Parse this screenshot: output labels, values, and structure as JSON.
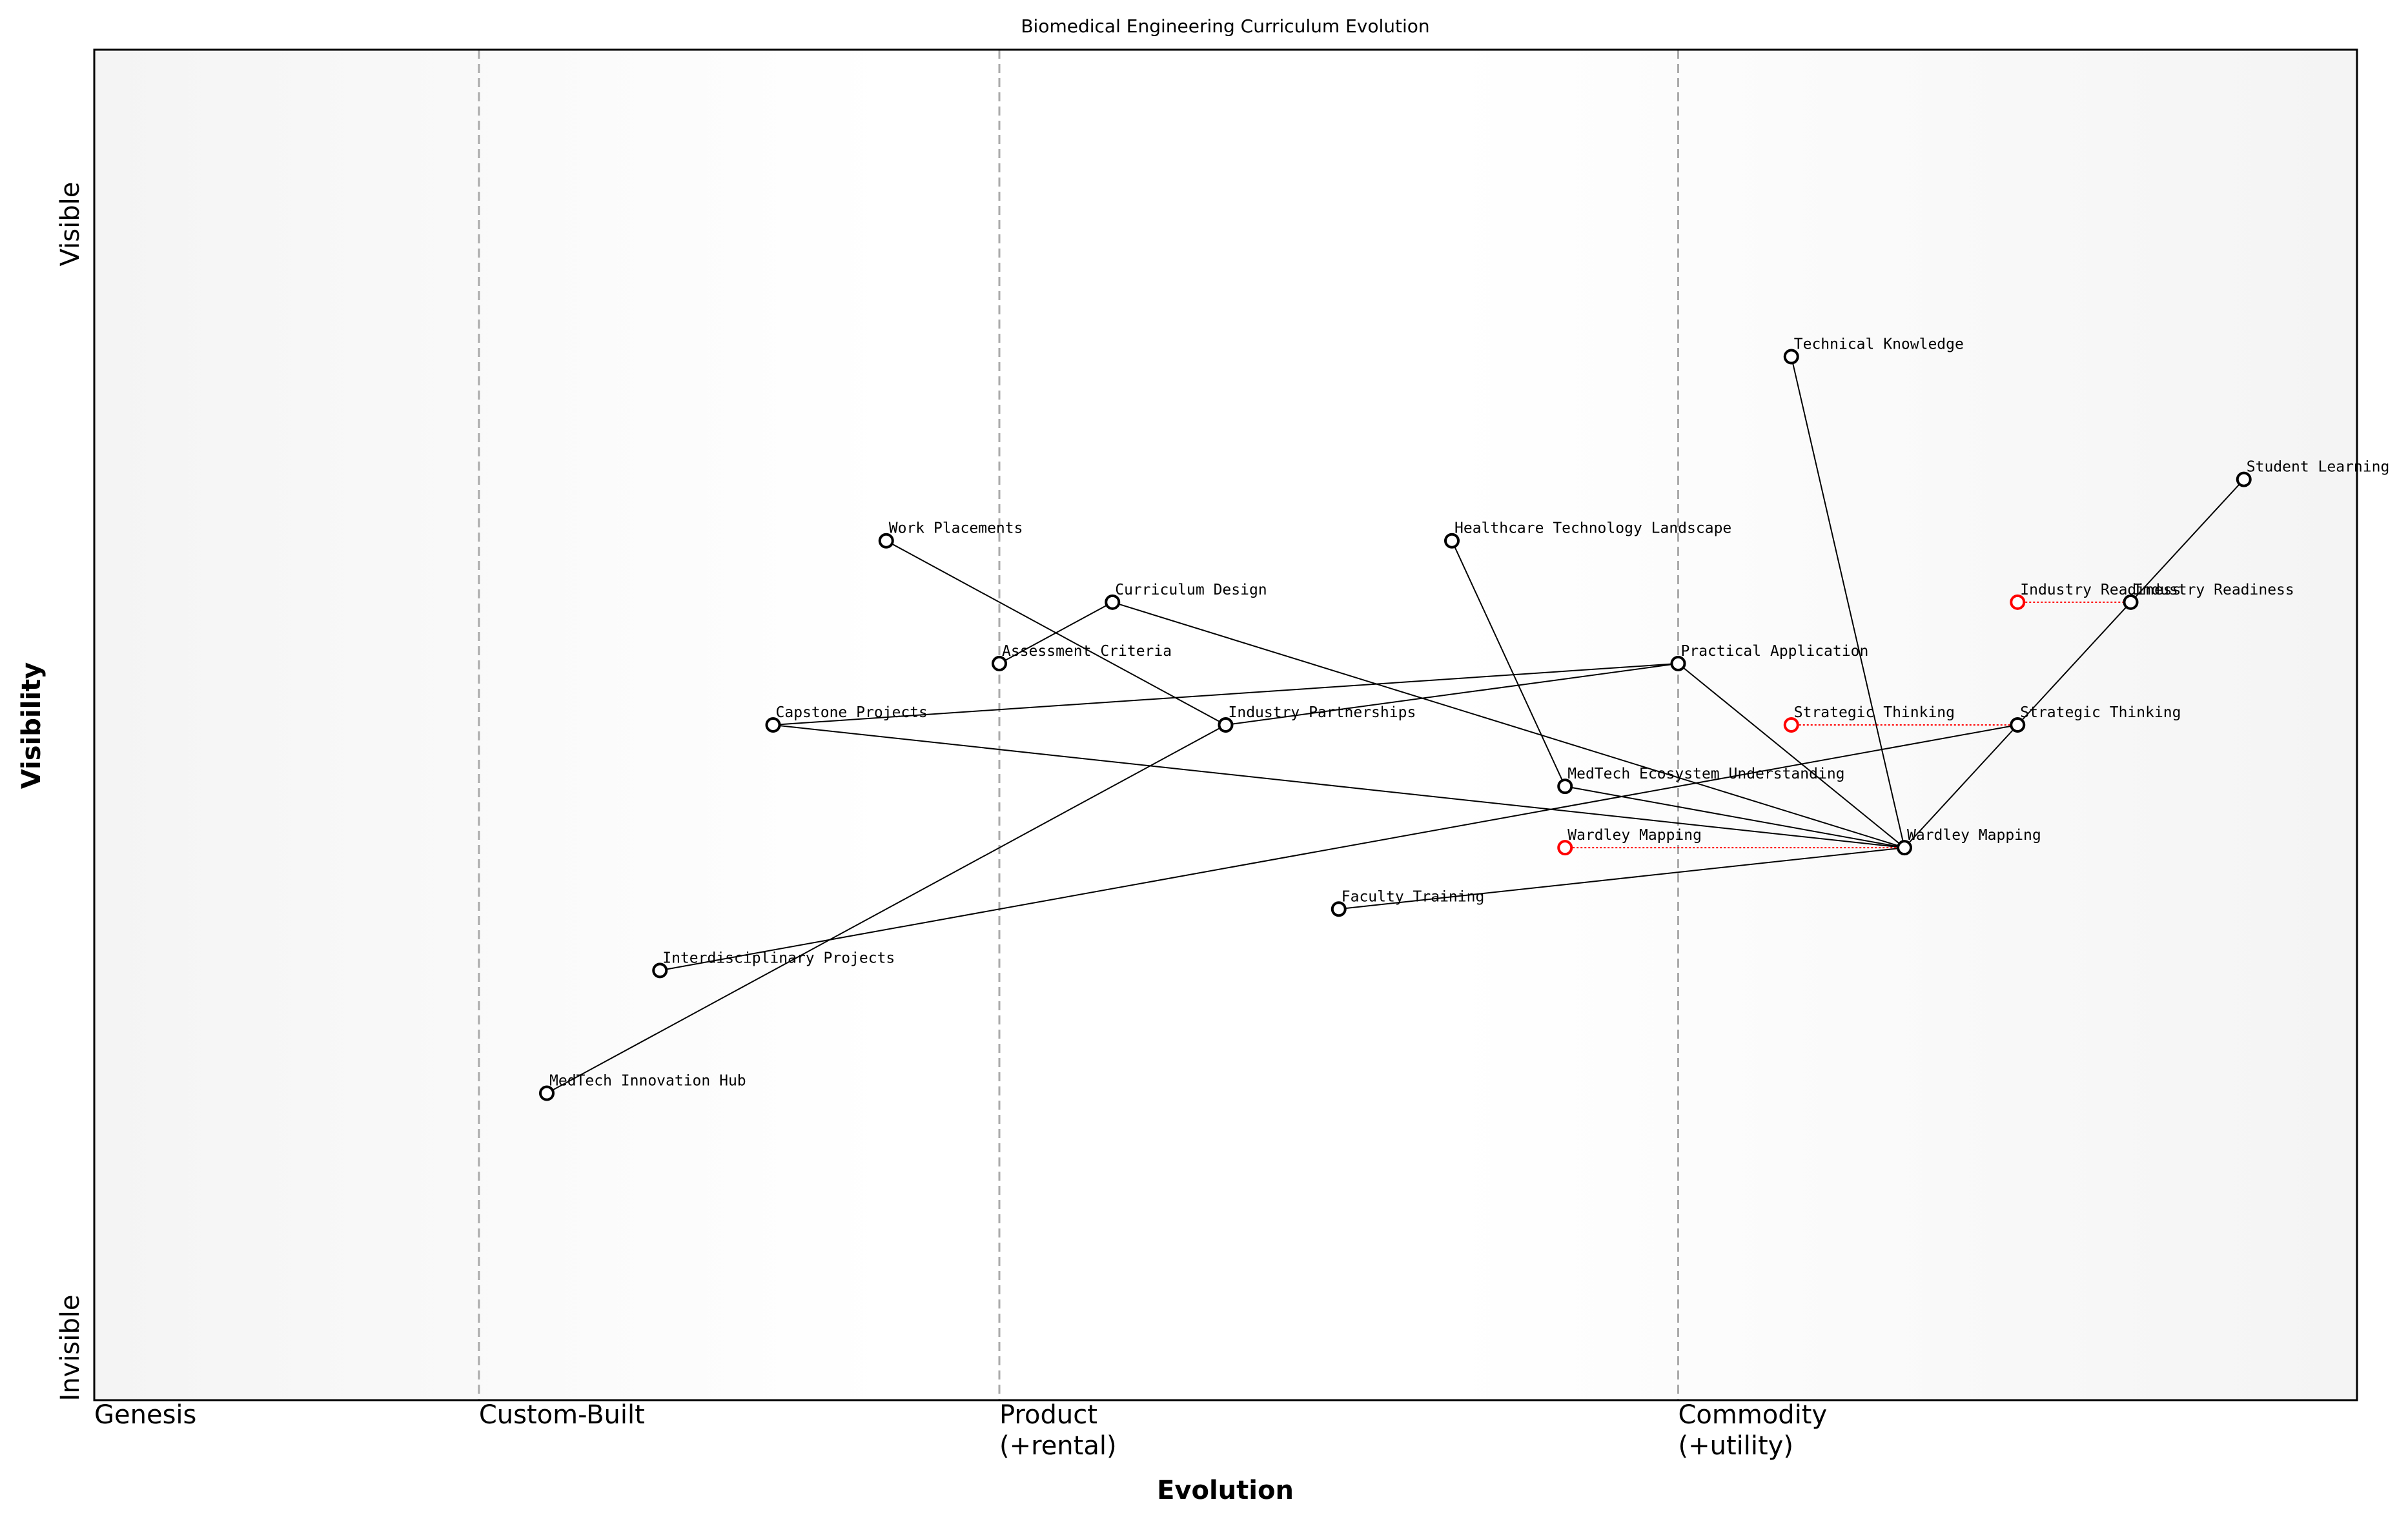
{
  "chart_data": {
    "type": "wardley",
    "title": "Biomedical Engineering Curriculum Evolution",
    "xlabel": "Evolution",
    "ylabel": "Visibility",
    "y_top_label": "Visible",
    "y_bottom_label": "Invisible",
    "xlim": [
      0,
      1
    ],
    "ylim": [
      0,
      1.1
    ],
    "xticks": [
      {
        "value": 0,
        "label": "Genesis"
      },
      {
        "value": 0.17,
        "label": "Custom-Built"
      },
      {
        "value": 0.4,
        "label": "Product\n(+rental)"
      },
      {
        "value": 0.7,
        "label": "Commodity\n(+utility)"
      }
    ],
    "node_color": "#000000",
    "evolve_color": "#ff0000",
    "nodes": [
      {
        "name": "Technical Knowledge",
        "x": 0.75,
        "y": 0.85
      },
      {
        "name": "Student Learning",
        "x": 0.95,
        "y": 0.75
      },
      {
        "name": "Work Placements",
        "x": 0.35,
        "y": 0.7
      },
      {
        "name": "Healthcare Technology Landscape",
        "x": 0.6,
        "y": 0.7
      },
      {
        "name": "Curriculum Design",
        "x": 0.45,
        "y": 0.65
      },
      {
        "name": "Industry Readiness",
        "x": 0.9,
        "y": 0.65
      },
      {
        "name": "Assessment Criteria",
        "x": 0.4,
        "y": 0.6
      },
      {
        "name": "Practical Application",
        "x": 0.7,
        "y": 0.6
      },
      {
        "name": "Capstone Projects",
        "x": 0.3,
        "y": 0.55
      },
      {
        "name": "Industry Partnerships",
        "x": 0.5,
        "y": 0.55
      },
      {
        "name": "Strategic Thinking",
        "x": 0.85,
        "y": 0.55
      },
      {
        "name": "MedTech Ecosystem Understanding",
        "x": 0.65,
        "y": 0.5
      },
      {
        "name": "Wardley Mapping",
        "x": 0.8,
        "y": 0.45
      },
      {
        "name": "Faculty Training",
        "x": 0.55,
        "y": 0.4
      },
      {
        "name": "Interdisciplinary Projects",
        "x": 0.25,
        "y": 0.35
      },
      {
        "name": "MedTech Innovation Hub",
        "x": 0.2,
        "y": 0.25
      }
    ],
    "evolutions": [
      {
        "name": "Industry Readiness",
        "x": 0.85,
        "y": 0.65
      },
      {
        "name": "Strategic Thinking",
        "x": 0.75,
        "y": 0.55
      },
      {
        "name": "Wardley Mapping",
        "x": 0.65,
        "y": 0.45
      }
    ],
    "links": [
      [
        "Student Learning",
        "Industry Readiness"
      ],
      [
        "Industry Readiness",
        "Strategic Thinking"
      ],
      [
        "Strategic Thinking",
        "Wardley Mapping"
      ],
      [
        "Strategic Thinking",
        "Interdisciplinary Projects"
      ],
      [
        "Technical Knowledge",
        "Wardley Mapping"
      ],
      [
        "Practical Application",
        "Wardley Mapping"
      ],
      [
        "Practical Application",
        "Capstone Projects"
      ],
      [
        "Practical Application",
        "Industry Partnerships"
      ],
      [
        "Healthcare Technology Landscape",
        "MedTech Ecosystem Understanding"
      ],
      [
        "MedTech Ecosystem Understanding",
        "Wardley Mapping"
      ],
      [
        "Curriculum Design",
        "Assessment Criteria"
      ],
      [
        "Curriculum Design",
        "Wardley Mapping"
      ],
      [
        "Work Placements",
        "Industry Partnerships"
      ],
      [
        "Industry Partnerships",
        "MedTech Innovation Hub"
      ],
      [
        "Capstone Projects",
        "Wardley Mapping"
      ],
      [
        "Faculty Training",
        "Wardley Mapping"
      ]
    ]
  }
}
